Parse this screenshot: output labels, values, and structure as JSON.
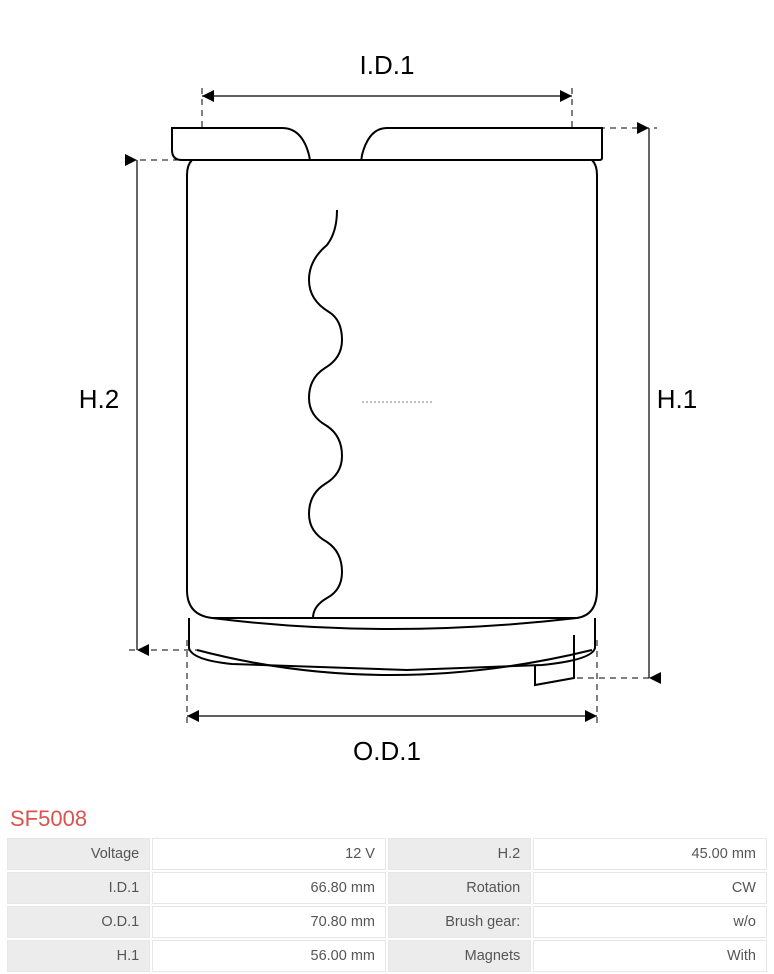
{
  "part_number": "SF5008",
  "diagram": {
    "labels": {
      "top": "I.D.1",
      "bottom": "O.D.1",
      "left": "H.2",
      "right": "H.1"
    },
    "colors": {
      "stroke": "#000000",
      "bg": "#ffffff",
      "titleColor": "#d9534f",
      "tableHeaderBg": "#ececec",
      "tableBorder": "#e7e7e7",
      "tableText": "#555555"
    },
    "line_weights": {
      "outline": 2,
      "dim": 1.2
    },
    "dash": "6,5"
  },
  "specs": [
    {
      "label": "Voltage",
      "value": "12 V",
      "label2": "H.2",
      "value2": "45.00 mm"
    },
    {
      "label": "I.D.1",
      "value": "66.80 mm",
      "label2": "Rotation",
      "value2": "CW"
    },
    {
      "label": "O.D.1",
      "value": "70.80 mm",
      "label2": "Brush gear:",
      "value2": "w/o"
    },
    {
      "label": "H.1",
      "value": "56.00 mm",
      "label2": "Magnets",
      "value2": "With"
    }
  ]
}
